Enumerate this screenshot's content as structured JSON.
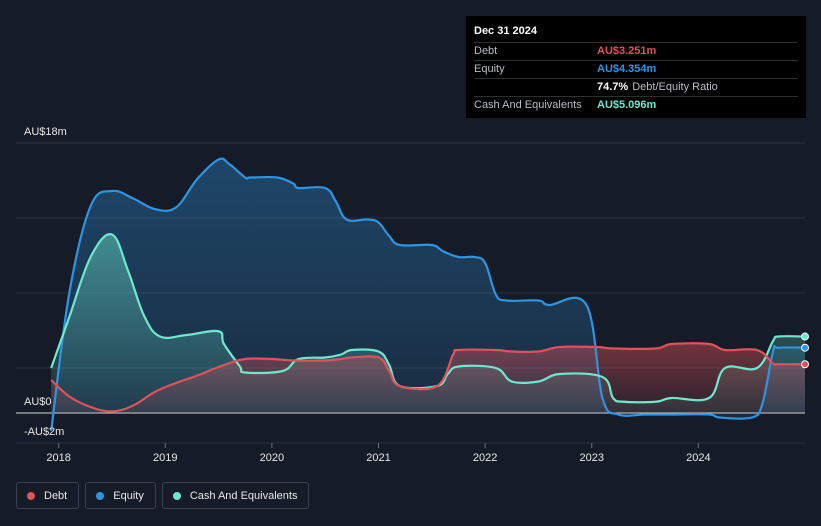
{
  "tooltip": {
    "date": "Dec 31 2024",
    "debt_label": "Debt",
    "debt_value": "AU$3.251m",
    "equity_label": "Equity",
    "equity_value": "AU$4.354m",
    "ratio_value": "74.7%",
    "ratio_label": "Debt/Equity Ratio",
    "cash_label": "Cash And Equivalents",
    "cash_value": "AU$5.096m"
  },
  "legend": {
    "debt": "Debt",
    "equity": "Equity",
    "cash": "Cash And Equivalents"
  },
  "colors": {
    "debt": "#e0525a",
    "equity": "#2d95e3",
    "cash": "#6ee7cf",
    "background": "#161c27"
  },
  "chart_data": {
    "type": "area",
    "title": "",
    "xlabel": "",
    "ylabel": "",
    "ylim": [
      -2,
      18
    ],
    "y_tick_labels": [
      {
        "value": 18,
        "label": "AU$18m"
      },
      {
        "value": 0,
        "label": "AU$0"
      },
      {
        "value": -2,
        "label": "-AU$2m"
      }
    ],
    "x_ticks": [
      2018,
      2019,
      2020,
      2021,
      2022,
      2023,
      2024
    ],
    "x_range": [
      2017.6,
      2025.0
    ],
    "grid": true,
    "legend_position": "bottom-left",
    "series": [
      {
        "name": "Equity",
        "color_key": "equity",
        "points": [
          [
            2017.93,
            -1.2
          ],
          [
            2018.1,
            8.0
          ],
          [
            2018.3,
            13.8
          ],
          [
            2018.5,
            14.8
          ],
          [
            2018.7,
            14.3
          ],
          [
            2018.9,
            13.6
          ],
          [
            2019.1,
            13.7
          ],
          [
            2019.3,
            15.6
          ],
          [
            2019.5,
            16.9
          ],
          [
            2019.6,
            16.6
          ],
          [
            2019.75,
            15.7
          ],
          [
            2019.8,
            15.7
          ],
          [
            2020.05,
            15.7
          ],
          [
            2020.2,
            15.3
          ],
          [
            2020.25,
            15.0
          ],
          [
            2020.5,
            15.0
          ],
          [
            2020.6,
            14.1
          ],
          [
            2020.7,
            12.9
          ],
          [
            2020.9,
            12.9
          ],
          [
            2021.0,
            12.7
          ],
          [
            2021.1,
            11.8
          ],
          [
            2021.2,
            11.2
          ],
          [
            2021.5,
            11.2
          ],
          [
            2021.6,
            10.8
          ],
          [
            2021.75,
            10.4
          ],
          [
            2021.9,
            10.4
          ],
          [
            2022.0,
            10.0
          ],
          [
            2022.1,
            7.9
          ],
          [
            2022.2,
            7.5
          ],
          [
            2022.5,
            7.5
          ],
          [
            2022.6,
            7.2
          ],
          [
            2022.95,
            7.2
          ],
          [
            2023.1,
            1.0
          ],
          [
            2023.25,
            -0.1
          ],
          [
            2023.5,
            -0.1
          ],
          [
            2023.75,
            -0.1
          ],
          [
            2024.1,
            -0.1
          ],
          [
            2024.2,
            -0.3
          ],
          [
            2024.5,
            -0.3
          ],
          [
            2024.6,
            0.6
          ],
          [
            2024.7,
            4.1
          ],
          [
            2024.75,
            4.35
          ],
          [
            2025.0,
            4.354
          ]
        ]
      },
      {
        "name": "Cash And Equivalents",
        "color_key": "cash",
        "points": [
          [
            2017.93,
            3.0
          ],
          [
            2018.1,
            6.4
          ],
          [
            2018.3,
            10.4
          ],
          [
            2018.5,
            11.9
          ],
          [
            2018.65,
            9.5
          ],
          [
            2018.8,
            6.5
          ],
          [
            2018.95,
            5.1
          ],
          [
            2019.2,
            5.2
          ],
          [
            2019.5,
            5.45
          ],
          [
            2019.55,
            4.6
          ],
          [
            2019.7,
            3.1
          ],
          [
            2019.75,
            2.7
          ],
          [
            2020.1,
            2.8
          ],
          [
            2020.25,
            3.6
          ],
          [
            2020.5,
            3.7
          ],
          [
            2020.65,
            3.9
          ],
          [
            2020.75,
            4.2
          ],
          [
            2021.0,
            4.1
          ],
          [
            2021.1,
            3.2
          ],
          [
            2021.2,
            1.8
          ],
          [
            2021.55,
            1.8
          ],
          [
            2021.65,
            2.6
          ],
          [
            2021.75,
            3.1
          ],
          [
            2022.1,
            3.0
          ],
          [
            2022.25,
            2.1
          ],
          [
            2022.5,
            2.1
          ],
          [
            2022.7,
            2.6
          ],
          [
            2023.1,
            2.4
          ],
          [
            2023.2,
            1.0
          ],
          [
            2023.3,
            0.75
          ],
          [
            2023.6,
            0.75
          ],
          [
            2023.75,
            1.0
          ],
          [
            2024.1,
            1.0
          ],
          [
            2024.25,
            3.0
          ],
          [
            2024.55,
            3.0
          ],
          [
            2024.7,
            4.8
          ],
          [
            2024.75,
            5.1
          ],
          [
            2025.0,
            5.096
          ]
        ]
      },
      {
        "name": "Debt",
        "color_key": "debt",
        "points": [
          [
            2017.93,
            2.2
          ],
          [
            2018.1,
            1.1
          ],
          [
            2018.3,
            0.4
          ],
          [
            2018.5,
            0.1
          ],
          [
            2018.7,
            0.5
          ],
          [
            2018.9,
            1.4
          ],
          [
            2019.1,
            2.0
          ],
          [
            2019.3,
            2.5
          ],
          [
            2019.55,
            3.2
          ],
          [
            2019.75,
            3.6
          ],
          [
            2020.0,
            3.6
          ],
          [
            2020.2,
            3.5
          ],
          [
            2020.5,
            3.5
          ],
          [
            2020.65,
            3.6
          ],
          [
            2020.75,
            3.7
          ],
          [
            2021.0,
            3.7
          ],
          [
            2021.1,
            2.8
          ],
          [
            2021.2,
            1.8
          ],
          [
            2021.55,
            1.8
          ],
          [
            2021.7,
            3.9
          ],
          [
            2021.75,
            4.2
          ],
          [
            2022.1,
            4.2
          ],
          [
            2022.25,
            4.1
          ],
          [
            2022.5,
            4.1
          ],
          [
            2022.7,
            4.4
          ],
          [
            2023.05,
            4.4
          ],
          [
            2023.2,
            4.3
          ],
          [
            2023.6,
            4.3
          ],
          [
            2023.75,
            4.6
          ],
          [
            2024.1,
            4.6
          ],
          [
            2024.25,
            4.2
          ],
          [
            2024.55,
            4.2
          ],
          [
            2024.7,
            3.3
          ],
          [
            2024.75,
            3.25
          ],
          [
            2025.0,
            3.251
          ]
        ]
      }
    ]
  }
}
